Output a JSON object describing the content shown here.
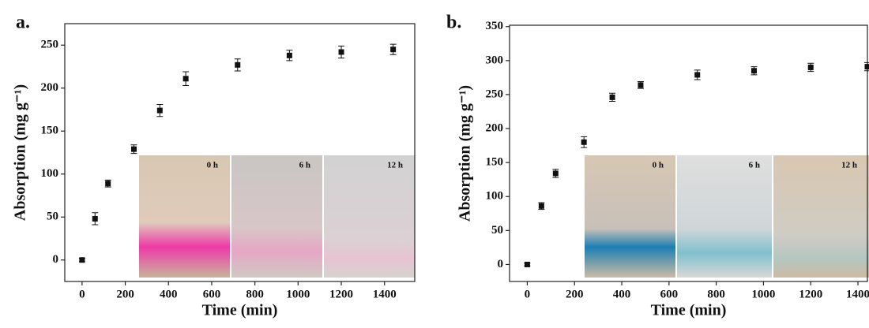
{
  "chart_data": [
    {
      "type": "scatter",
      "panel_label": "a.",
      "xlabel": "Time (min)",
      "ylabel": "Absorption (mg g⁻¹)",
      "x": [
        0,
        60,
        120,
        240,
        360,
        480,
        720,
        960,
        1200,
        1440
      ],
      "values": [
        0,
        48,
        89,
        129,
        174,
        211,
        227,
        238,
        242,
        245
      ],
      "errors": [
        2,
        7,
        4,
        5,
        7,
        8,
        7,
        6,
        7,
        6
      ],
      "color": "#111111",
      "xlim": [
        -80,
        1540
      ],
      "xticks": [
        0,
        200,
        400,
        600,
        800,
        1000,
        1200,
        1400
      ],
      "ylim": [
        -25,
        275
      ],
      "yticks": [
        0,
        50,
        100,
        150,
        200,
        250
      ],
      "annotations": [
        "0 h",
        "6 h",
        "12 h"
      ]
    },
    {
      "type": "scatter",
      "panel_label": "b.",
      "xlabel": "Time (min)",
      "ylabel": "Absorption (mg g⁻¹)",
      "x": [
        0,
        60,
        120,
        240,
        360,
        480,
        720,
        960,
        1200,
        1440
      ],
      "values": [
        0,
        86,
        134,
        180,
        246,
        264,
        279,
        285,
        290,
        291
      ],
      "errors": [
        2,
        5,
        6,
        8,
        6,
        5,
        7,
        6,
        6,
        6
      ],
      "color": "#111111",
      "xlim": [
        -75,
        1440
      ],
      "xticks": [
        0,
        200,
        400,
        600,
        800,
        1000,
        1200,
        1400
      ],
      "ylim": [
        -25,
        352
      ],
      "yticks": [
        0,
        50,
        100,
        150,
        200,
        250,
        300,
        350
      ],
      "annotations": [
        "0 h",
        "6 h",
        "12 h"
      ]
    }
  ]
}
